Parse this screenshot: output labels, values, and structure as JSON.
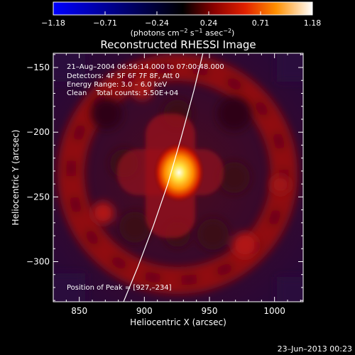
{
  "colorbar": {
    "ticks": [
      "−1.18",
      "−0.71",
      "−0.24",
      "0.24",
      "0.71",
      "1.18"
    ],
    "units_main": "(photons cm",
    "units_sup1": "−2",
    "units_mid1": " s",
    "units_sup2": "−1",
    "units_mid2": " asec",
    "units_sup3": "−2",
    "units_end": ")"
  },
  "chart_data": {
    "type": "heatmap",
    "title": "Reconstructed RHESSI Image",
    "xlabel": "Heliocentric X (arcsec)",
    "ylabel": "Heliocentric Y (arcsec)",
    "xlim": [
      830,
      1022
    ],
    "ylim": [
      -331,
      -139
    ],
    "xticks": [
      850,
      900,
      950,
      1000
    ],
    "yticks": [
      -150,
      -200,
      -250,
      -300
    ],
    "xtick_labels": [
      "850",
      "900",
      "950",
      "1000"
    ],
    "ytick_labels": [
      "−150",
      "−200",
      "−250",
      "−300"
    ],
    "clim": [
      -1.18,
      1.18
    ],
    "colormap": [
      "#0000ff",
      "#000000",
      "#5a0000",
      "#b01010",
      "#e03000",
      "#ff9000",
      "#ffe020",
      "#ffffe0"
    ],
    "peak": {
      "x": 927,
      "y": -234,
      "value": 1.18
    },
    "limb_curve": [
      [
        884,
        -331
      ],
      [
        895,
        -304
      ],
      [
        907,
        -272
      ],
      [
        918,
        -240
      ],
      [
        928,
        -205
      ],
      [
        938,
        -168
      ],
      [
        945,
        -139
      ]
    ],
    "annotations": {
      "time": "21–Aug–2004 06:56:14.000 to 07:00:48.000",
      "detectors": "Detectors: 4F 5F 6F 7F 8F, Att 0",
      "energy": "Energy Range: 3.0 – 6.0 keV",
      "clean": "Clean    Total counts: 5.50E+04",
      "peak_label": "Position of Peak = [927,–234]"
    }
  },
  "footer_date": "23–Jun–2013 00:23"
}
